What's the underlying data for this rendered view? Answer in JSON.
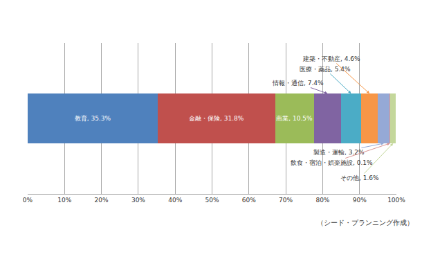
{
  "chart_data": {
    "type": "bar",
    "orientation": "horizontal",
    "stacked": true,
    "categories": [
      null
    ],
    "series": [
      {
        "name": "教育",
        "color": "#4f81bd",
        "values": [
          35.3
        ],
        "value_labels": [
          "教育, 35.3%"
        ]
      },
      {
        "name": "金融・保険",
        "color": "#c0504d",
        "values": [
          31.8
        ],
        "value_labels": [
          "金融・保険, 31.8%"
        ]
      },
      {
        "name": "商業",
        "color": "#9bbb59",
        "values": [
          10.5
        ],
        "value_labels": [
          "商業, 10.5%"
        ]
      },
      {
        "name": "情報・通信",
        "color": "#8064a2",
        "values": [
          7.4
        ],
        "value_labels": [
          "情報・通信, 7.4%"
        ]
      },
      {
        "name": "医療・薬品",
        "color": "#4bacc6",
        "values": [
          5.4
        ],
        "value_labels": [
          "医療・薬品, 5.4%"
        ]
      },
      {
        "name": "建築・不動産",
        "color": "#f79646",
        "values": [
          4.6
        ],
        "value_labels": [
          "建築・不動産, 4.6%"
        ]
      },
      {
        "name": "製造・運輸",
        "color": "#95a9d6",
        "values": [
          3.2
        ],
        "value_labels": [
          "製造・運輸, 3.2%"
        ]
      },
      {
        "name": "飲食・宿泊・娯楽施設",
        "color": "#d99694",
        "values": [
          0.1
        ],
        "value_labels": [
          "飲食・宿泊・娯楽施設, 0.1%"
        ]
      },
      {
        "name": "その他",
        "color": "#c4d79b",
        "values": [
          1.6
        ],
        "value_labels": [
          "その他, 1.6%"
        ]
      }
    ],
    "xlim": [
      0,
      100
    ],
    "xticks": [
      {
        "value": 0,
        "label": "0%"
      },
      {
        "value": 10,
        "label": "10%"
      },
      {
        "value": 20,
        "label": "20%"
      },
      {
        "value": 30,
        "label": "30%"
      },
      {
        "value": 40,
        "label": "40%"
      },
      {
        "value": 50,
        "label": "50%"
      },
      {
        "value": 60,
        "label": "60%"
      },
      {
        "value": 70,
        "label": "70%"
      },
      {
        "value": 80,
        "label": "80%"
      },
      {
        "value": 90,
        "label": "90%"
      },
      {
        "value": 100,
        "label": "100%"
      }
    ],
    "grid": true,
    "data_labels": true,
    "tick_labels": "x",
    "annotations": [
      "（シード・プランニング作成）"
    ]
  }
}
